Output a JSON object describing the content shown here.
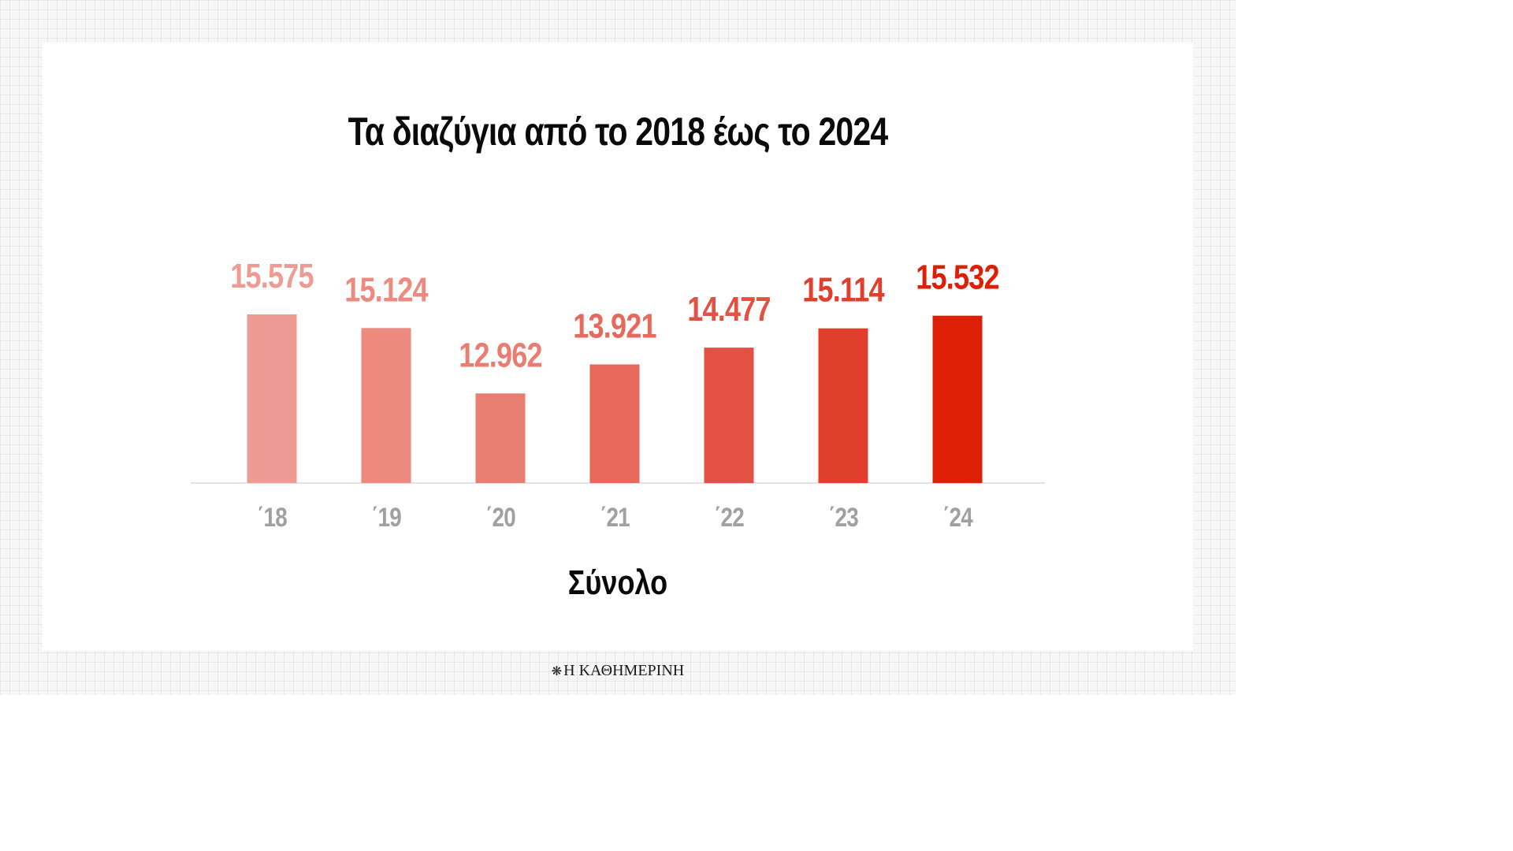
{
  "chart_data": {
    "type": "bar",
    "title": "Τα διαζύγια από το 2018 έως το 2024",
    "xlabel": "Σύνολο",
    "ylabel": "",
    "categories": [
      "΄18",
      "΄19",
      "΄20",
      "΄21",
      "΄22",
      "΄23",
      "΄24"
    ],
    "values": [
      15575,
      15124,
      12962,
      13921,
      14477,
      15114,
      15532
    ],
    "value_labels": [
      "15.575",
      "15.124",
      "12.962",
      "13.921",
      "14.477",
      "15.114",
      "15.532"
    ],
    "colors": [
      "#ee9b93",
      "#ec8a80",
      "#ea7d72",
      "#e6695c",
      "#e25244",
      "#e13e2e",
      "#dd1f05"
    ],
    "ylim": [
      10000,
      16000
    ],
    "grid": false,
    "legend": "none"
  },
  "brand": {
    "icon": "owl-icon",
    "name": "Η ΚΑΘΗΜΕΡΙΝΗ"
  }
}
